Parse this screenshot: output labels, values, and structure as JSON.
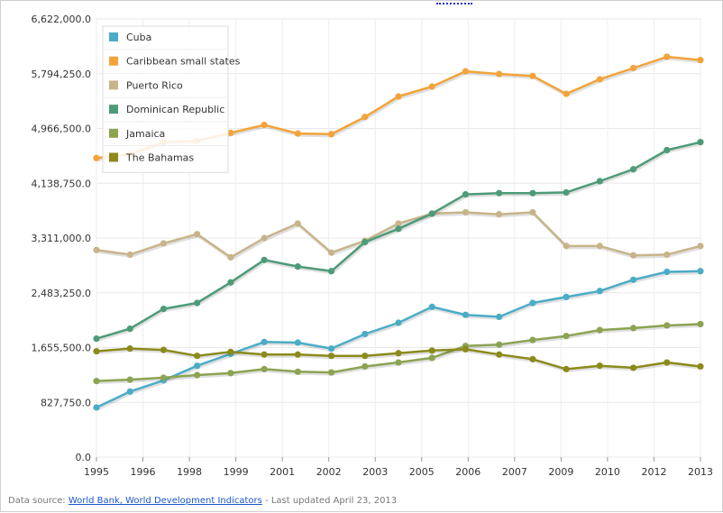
{
  "chart_data": {
    "type": "line",
    "x": [
      1995,
      1996,
      1997,
      1998,
      1999,
      2000,
      2001,
      2002,
      2003,
      2004,
      2005,
      2006,
      2007,
      2008,
      2009,
      2010,
      2011,
      2012,
      2013
    ],
    "xticks": [
      "1995",
      "1996",
      "1998",
      "1999",
      "2001",
      "2002",
      "2003",
      "2005",
      "2006",
      "2007",
      "2009",
      "2010",
      "2012",
      "2013"
    ],
    "ylim": [
      0,
      6622000
    ],
    "yticks": [
      "0.0",
      "827,750.0",
      "1,655,500.0",
      "2,483,250.0",
      "3,311,000.0",
      "4,138,750.0",
      "4,966,500.0",
      "5,794,250.0",
      "6,622,000.0"
    ],
    "grid": true,
    "legend_position": "top-left",
    "series": [
      {
        "name": "Cuba",
        "color": "#4bacc6",
        "values": [
          750000,
          990000,
          1160000,
          1380000,
          1560000,
          1740000,
          1730000,
          1640000,
          1860000,
          2030000,
          2270000,
          2150000,
          2120000,
          2330000,
          2420000,
          2510000,
          2680000,
          2800000,
          2810000
        ]
      },
      {
        "name": "Caribbean small states",
        "color": "#f2a33a",
        "values": [
          4520000,
          4580000,
          4760000,
          4780000,
          4900000,
          5020000,
          4890000,
          4880000,
          5140000,
          5450000,
          5600000,
          5830000,
          5790000,
          5760000,
          5490000,
          5710000,
          5880000,
          6050000,
          6000000
        ]
      },
      {
        "name": "Puerto Rico",
        "color": "#c8b48a",
        "values": [
          3130000,
          3060000,
          3230000,
          3370000,
          3020000,
          3310000,
          3530000,
          3090000,
          3270000,
          3530000,
          3680000,
          3700000,
          3670000,
          3700000,
          3190000,
          3190000,
          3050000,
          3060000,
          3190000
        ]
      },
      {
        "name": "Dominican Republic",
        "color": "#4d9b78",
        "values": [
          1790000,
          1940000,
          2240000,
          2330000,
          2640000,
          2980000,
          2880000,
          2810000,
          3250000,
          3450000,
          3680000,
          3970000,
          3990000,
          3990000,
          4000000,
          4170000,
          4350000,
          4640000,
          4760000
        ]
      },
      {
        "name": "Jamaica",
        "color": "#8ca352",
        "values": [
          1150000,
          1170000,
          1200000,
          1240000,
          1270000,
          1330000,
          1290000,
          1280000,
          1370000,
          1430000,
          1500000,
          1680000,
          1700000,
          1770000,
          1830000,
          1920000,
          1950000,
          1990000,
          2010000
        ]
      },
      {
        "name": "The Bahamas",
        "color": "#8c8a1c",
        "values": [
          1600000,
          1640000,
          1620000,
          1530000,
          1590000,
          1550000,
          1550000,
          1530000,
          1530000,
          1570000,
          1610000,
          1630000,
          1550000,
          1480000,
          1330000,
          1380000,
          1350000,
          1430000,
          1370000
        ]
      }
    ]
  },
  "footer": {
    "prefix": "Data source: ",
    "source_link": "World Bank, World Development Indicators",
    "suffix": " - Last updated April 23, 2013"
  }
}
